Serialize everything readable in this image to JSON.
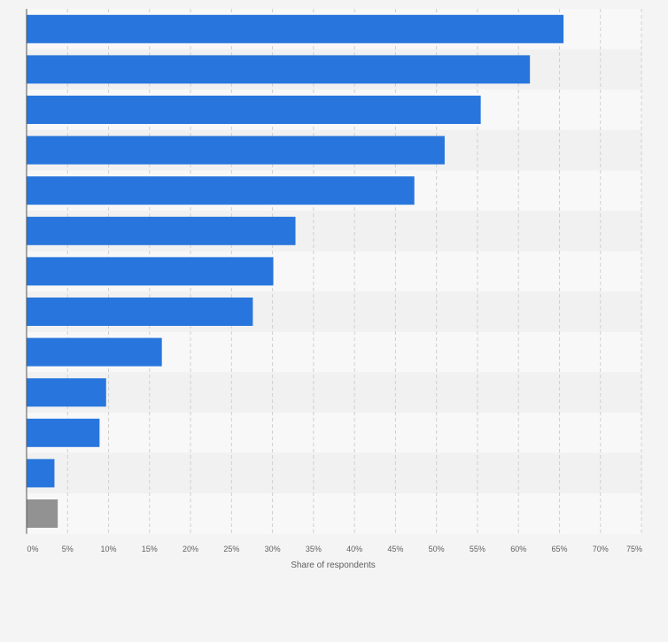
{
  "chart_data": {
    "type": "bar",
    "orientation": "horizontal",
    "categories": [
      "",
      "",
      "",
      "",
      "",
      "",
      "",
      "",
      "",
      "",
      "",
      "",
      ""
    ],
    "values": [
      65.5,
      61.4,
      55.4,
      51.0,
      47.3,
      32.8,
      30.1,
      27.6,
      16.5,
      9.7,
      8.9,
      3.4,
      3.8
    ],
    "bar_colors": [
      "#2876dd",
      "#2876dd",
      "#2876dd",
      "#2876dd",
      "#2876dd",
      "#2876dd",
      "#2876dd",
      "#2876dd",
      "#2876dd",
      "#2876dd",
      "#2876dd",
      "#2876dd",
      "#929292"
    ],
    "xlim": [
      0,
      75
    ],
    "x_ticks": [
      "0%",
      "5%",
      "10%",
      "15%",
      "20%",
      "25%",
      "30%",
      "35%",
      "40%",
      "45%",
      "50%",
      "55%",
      "60%",
      "65%",
      "70%",
      "75%"
    ],
    "xlabel": "Share of respondents",
    "ylabel": "",
    "title": "",
    "grid": true,
    "legend": "none"
  },
  "colors": {
    "accent": "#2876dd",
    "other": "#929292",
    "band_light": "#f8f8f8",
    "band_dark": "#f1f1f1",
    "grid": "#d0d0d0",
    "axis_text": "#606060"
  }
}
